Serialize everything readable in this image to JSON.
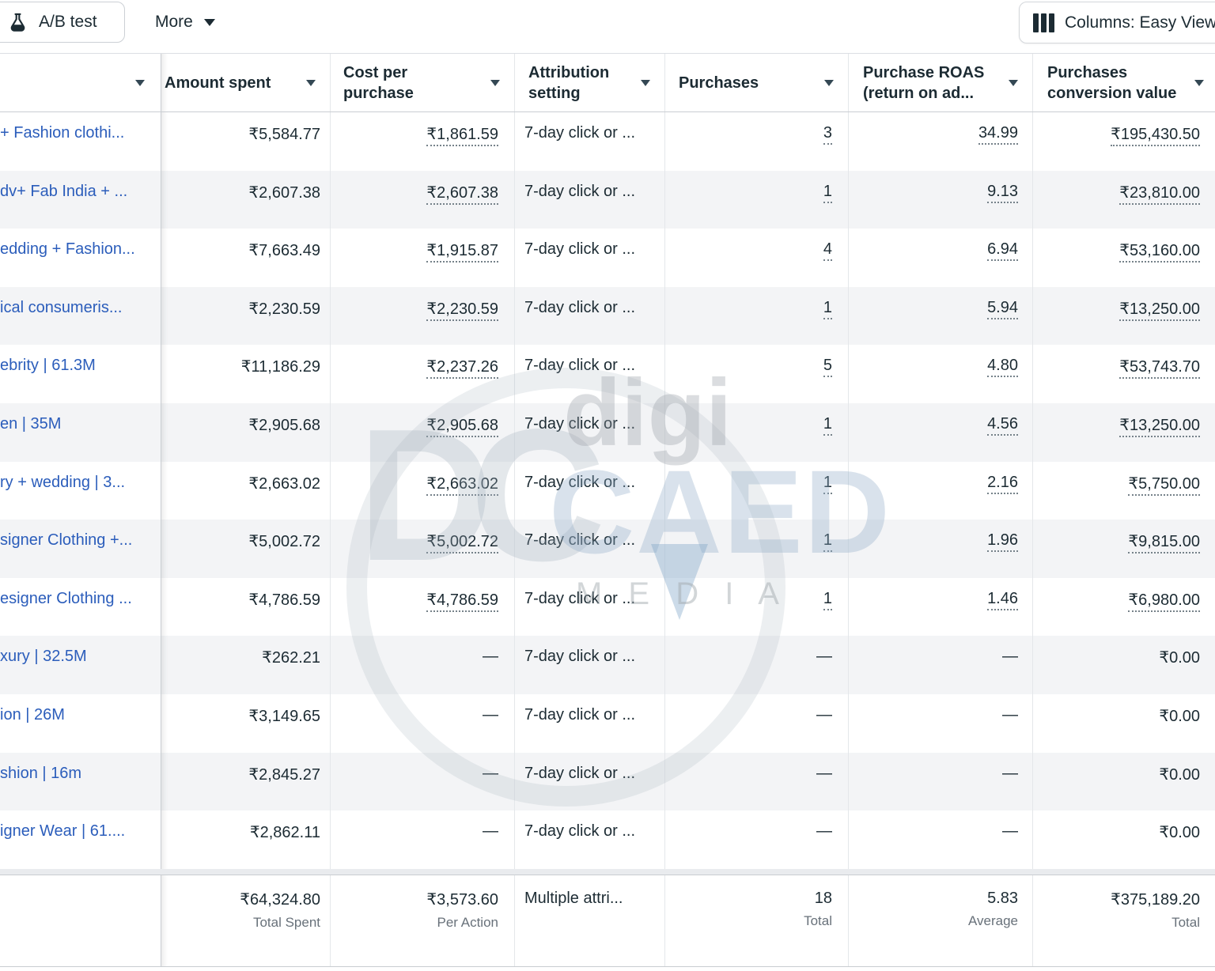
{
  "toolbar": {
    "ab_test_label": "A/B test",
    "more_label": "More",
    "columns_label": "Columns: Easy View"
  },
  "table": {
    "columns": [
      {
        "label": ""
      },
      {
        "label": "Amount spent"
      },
      {
        "label": "Cost per purchase"
      },
      {
        "label": "Attribution setting"
      },
      {
        "label": "Purchases"
      },
      {
        "label": "Purchase ROAS (return on ad..."
      },
      {
        "label": "Purchases conversion value"
      }
    ],
    "rows": [
      {
        "name": "+ Fashion clothi...",
        "amount_spent": "₹5,584.77",
        "cost_per_purchase": "₹1,861.59",
        "attribution": "7-day click or ...",
        "purchases": "3",
        "roas": "34.99",
        "conversion_value": "₹195,430.50",
        "linked": true
      },
      {
        "name": "dv+ Fab India + ...",
        "amount_spent": "₹2,607.38",
        "cost_per_purchase": "₹2,607.38",
        "attribution": "7-day click or ...",
        "purchases": "1",
        "roas": "9.13",
        "conversion_value": "₹23,810.00",
        "linked": true
      },
      {
        "name": "edding + Fashion...",
        "amount_spent": "₹7,663.49",
        "cost_per_purchase": "₹1,915.87",
        "attribution": "7-day click or ...",
        "purchases": "4",
        "roas": "6.94",
        "conversion_value": "₹53,160.00",
        "linked": true
      },
      {
        "name": "ical consumeris...",
        "amount_spent": "₹2,230.59",
        "cost_per_purchase": "₹2,230.59",
        "attribution": "7-day click or ...",
        "purchases": "1",
        "roas": "5.94",
        "conversion_value": "₹13,250.00",
        "linked": true
      },
      {
        "name": "ebrity | 61.3M",
        "amount_spent": "₹11,186.29",
        "cost_per_purchase": "₹2,237.26",
        "attribution": "7-day click or ...",
        "purchases": "5",
        "roas": "4.80",
        "conversion_value": "₹53,743.70",
        "linked": true
      },
      {
        "name": "en | 35M",
        "amount_spent": "₹2,905.68",
        "cost_per_purchase": "₹2,905.68",
        "attribution": "7-day click or ...",
        "purchases": "1",
        "roas": "4.56",
        "conversion_value": "₹13,250.00",
        "linked": true
      },
      {
        "name": "ry + wedding | 3...",
        "amount_spent": "₹2,663.02",
        "cost_per_purchase": "₹2,663.02",
        "attribution": "7-day click or ...",
        "purchases": "1",
        "roas": "2.16",
        "conversion_value": "₹5,750.00",
        "linked": true
      },
      {
        "name": "signer Clothing +...",
        "amount_spent": "₹5,002.72",
        "cost_per_purchase": "₹5,002.72",
        "attribution": "7-day click or ...",
        "purchases": "1",
        "roas": "1.96",
        "conversion_value": "₹9,815.00",
        "linked": true
      },
      {
        "name": "esigner Clothing ...",
        "amount_spent": "₹4,786.59",
        "cost_per_purchase": "₹4,786.59",
        "attribution": "7-day click or ...",
        "purchases": "1",
        "roas": "1.46",
        "conversion_value": "₹6,980.00",
        "linked": true
      },
      {
        "name": "xury | 32.5M",
        "amount_spent": "₹262.21",
        "cost_per_purchase": "—",
        "attribution": "7-day click or ...",
        "purchases": "—",
        "roas": "—",
        "conversion_value": "₹0.00",
        "linked": false
      },
      {
        "name": "ion | 26M",
        "amount_spent": "₹3,149.65",
        "cost_per_purchase": "—",
        "attribution": "7-day click or ...",
        "purchases": "—",
        "roas": "—",
        "conversion_value": "₹0.00",
        "linked": false
      },
      {
        "name": "shion | 16m",
        "amount_spent": "₹2,845.27",
        "cost_per_purchase": "—",
        "attribution": "7-day click or ...",
        "purchases": "—",
        "roas": "—",
        "conversion_value": "₹0.00",
        "linked": false
      },
      {
        "name": "igner Wear | 61....",
        "amount_spent": "₹2,862.11",
        "cost_per_purchase": "—",
        "attribution": "7-day click or ...",
        "purchases": "—",
        "roas": "—",
        "conversion_value": "₹0.00",
        "linked": false
      }
    ],
    "totals": {
      "amount_spent": {
        "value": "₹64,324.80",
        "label": "Total Spent"
      },
      "cost_per_purchase": {
        "value": "₹3,573.60",
        "label": "Per Action"
      },
      "attribution": {
        "value": "Multiple attri...",
        "label": ""
      },
      "purchases": {
        "value": "18",
        "label": "Total"
      },
      "roas": {
        "value": "5.83",
        "label": "Average"
      },
      "conversion_value": {
        "value": "₹375,189.20",
        "label": "Total"
      }
    }
  },
  "watermark": {
    "monogram": "DC",
    "line1": "digi",
    "line2": "CAED",
    "line3": "M E D I A"
  },
  "colors": {
    "link_blue": "#2b5dbb",
    "row_alt": "#f3f4f6",
    "text_dark": "#1c2b33",
    "border_light": "#e4e7ea"
  }
}
